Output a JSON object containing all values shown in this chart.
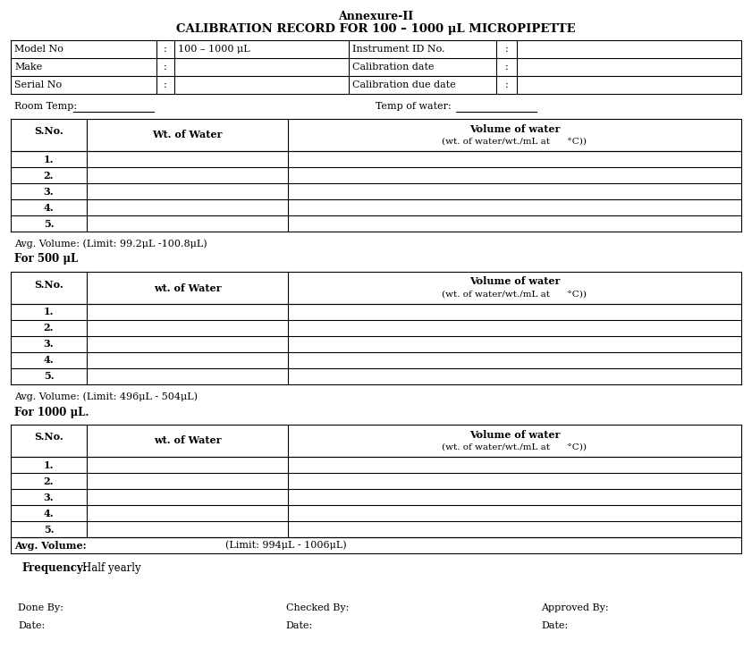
{
  "title_line1": "Annexure-II",
  "title_line2": "CALIBRATION RECORD FOR 100 – 1000 μL MICROPIPETTE",
  "header_rows": [
    [
      "Model No",
      ":",
      "100 – 1000 μL",
      "Instrument ID No.",
      ":",
      ""
    ],
    [
      "Make",
      ":",
      "",
      "Calibration date",
      ":",
      ""
    ],
    [
      "Serial No",
      ":",
      "",
      "Calibration due date",
      ":",
      ""
    ]
  ],
  "room_temp_label": "Room Temp:",
  "temp_water_label": "Temp of water:",
  "section1_header_col1": "S.No.",
  "section1_header_col2": "Wt. of Water",
  "section1_header_col3_line1": "Volume of water",
  "section1_header_col3_line2": "(wt. of water/wt./mL at      °C))",
  "section1_rows": [
    "1.",
    "2.",
    "3.",
    "4.",
    "5."
  ],
  "section1_avg": "Avg. Volume: (Limit: 99.2μL -100.8μL)",
  "section2_label": "For 500 μL",
  "section2_header_col1": "S.No.",
  "section2_header_col2": "wt. of Water",
  "section2_header_col3_line1": "Volume of water",
  "section2_header_col3_line2": "(wt. of water/wt./mL at      °C))",
  "section2_rows": [
    "1.",
    "2.",
    "3.",
    "4.",
    "5."
  ],
  "section2_avg": "Avg. Volume: (Limit: 496μL - 504μL)",
  "section3_label": "For 1000 μL.",
  "section3_header_col1": "S.No.",
  "section3_header_col2": "wt. of Water",
  "section3_header_col3_line1": "Volume of water",
  "section3_header_col3_line2": "(wt. of water/wt./mL at      °C))",
  "section3_rows": [
    "1.",
    "2.",
    "3.",
    "4.",
    "5."
  ],
  "section3_avg_label": "Avg. Volume:",
  "section3_avg_limit": "(Limit: 994μL - 1006μL)",
  "frequency_label": "Frequency:",
  "frequency_value": "Half yearly",
  "done_by": "Done By:",
  "checked_by": "Checked By:",
  "approved_by": "Approved By:",
  "date1": "Date:",
  "date2": "Date:",
  "date3": "Date:",
  "bg_color": "#ffffff",
  "text_color": "#000000",
  "line_color": "#000000",
  "fig_w": 8.41,
  "fig_h": 7.26,
  "dpi": 100
}
